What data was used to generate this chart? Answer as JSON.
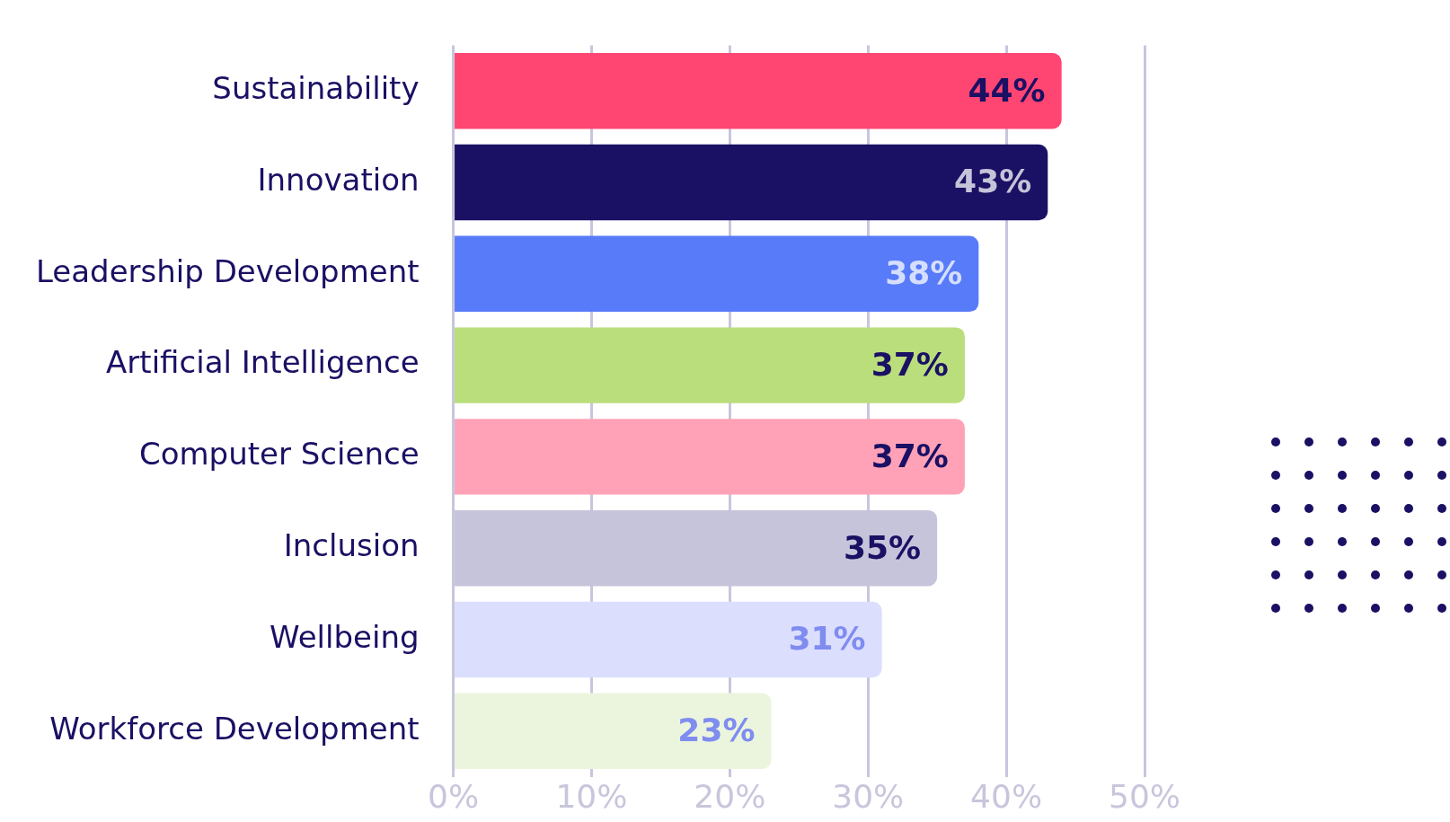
{
  "chart_data": {
    "type": "bar",
    "orientation": "horizontal",
    "categories": [
      "Sustainability",
      "Innovation",
      "Leadership Development",
      "Artificial Intelligence",
      "Computer Science",
      "Inclusion",
      "Wellbeing",
      "Workforce Development"
    ],
    "values": [
      44,
      43,
      38,
      37,
      37,
      35,
      31,
      23
    ],
    "colors": [
      "#ff4672",
      "#1a1064",
      "#587bfa",
      "#b9de7b",
      "#ffa2b7",
      "#c6c4da",
      "#dcdefe",
      "#ebf5dd"
    ],
    "value_labels": [
      "44%",
      "43%",
      "38%",
      "37%",
      "37%",
      "35%",
      "31%",
      "23%"
    ],
    "xlim": [
      0,
      50
    ],
    "xticks": [
      {
        "value": 0,
        "label": "0%"
      },
      {
        "value": 10,
        "label": "10%"
      },
      {
        "value": 20,
        "label": "20%"
      },
      {
        "value": 30,
        "label": "30%"
      },
      {
        "value": 40,
        "label": "40%"
      },
      {
        "value": 50,
        "label": "50%"
      }
    ],
    "grid": "x",
    "legend": false
  }
}
